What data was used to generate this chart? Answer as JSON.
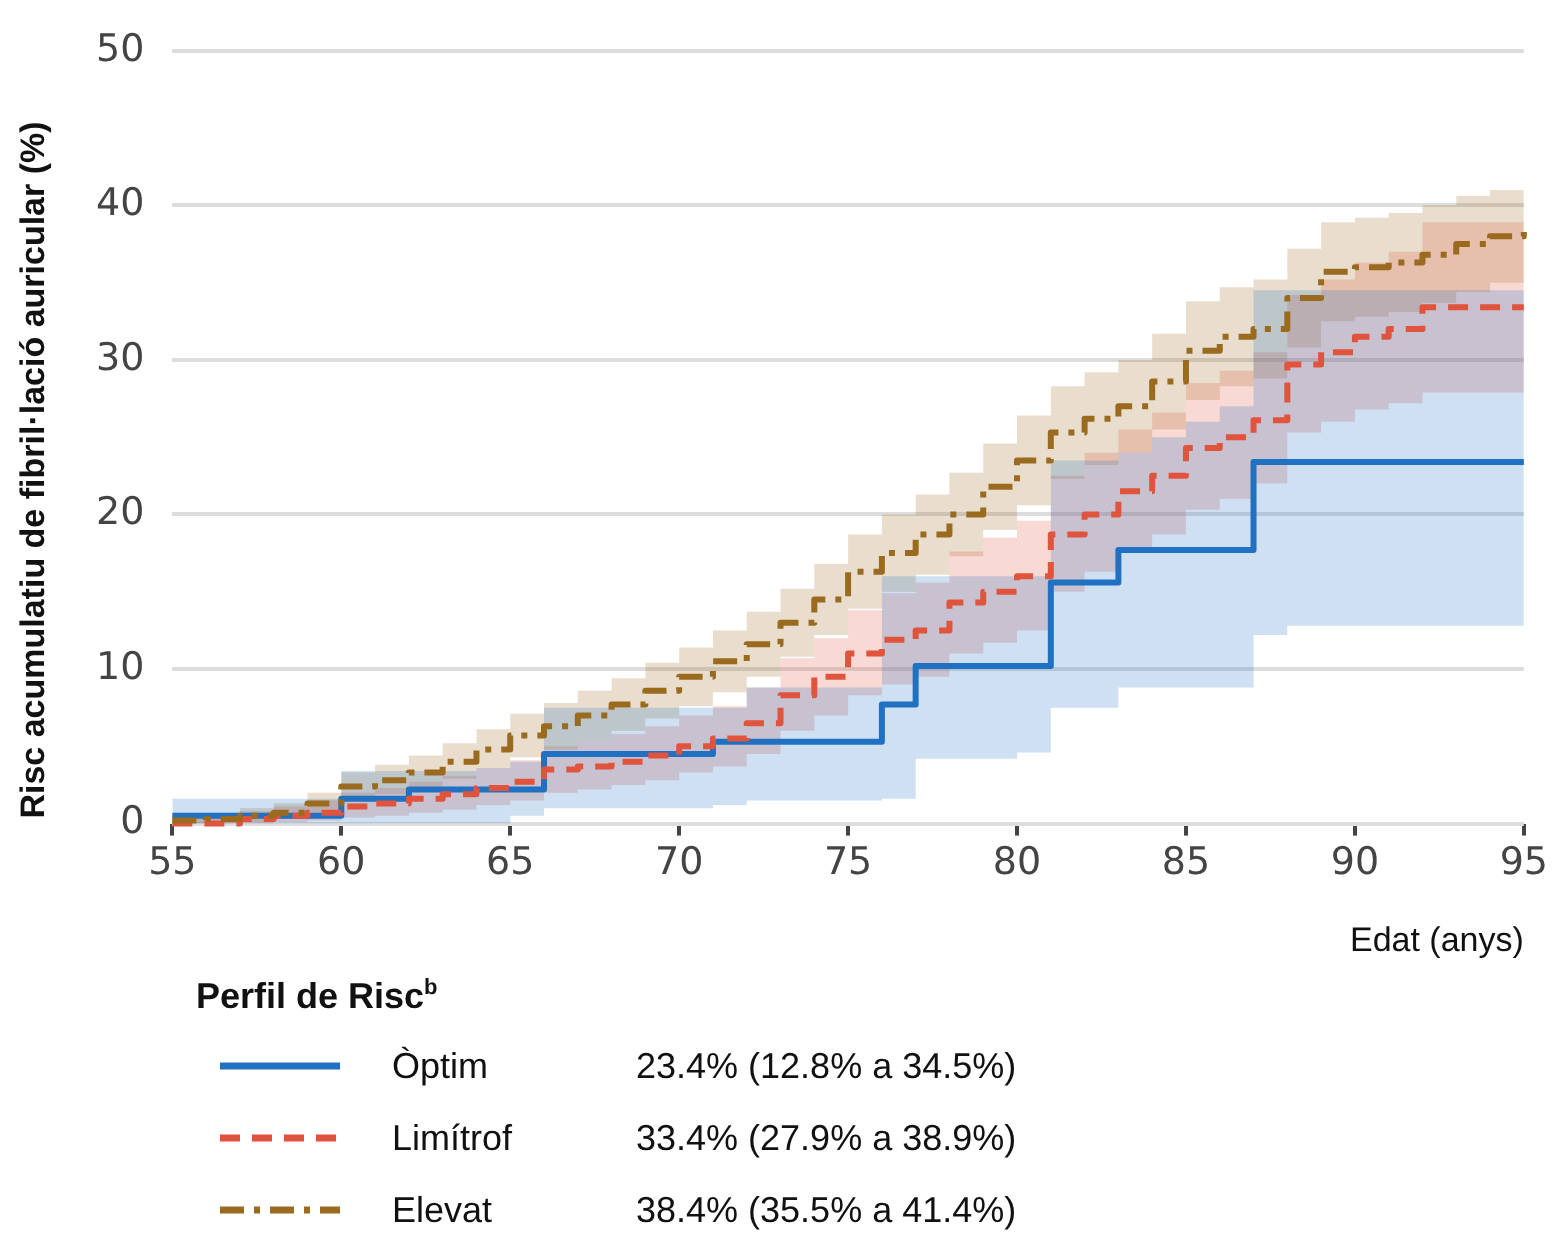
{
  "chart_data": {
    "type": "step",
    "ylabel": "Risc acumulatiu de fibril·lació auricular (%)",
    "xlabel": "Edat (anys)",
    "legend_title": "Perfil de Risc$^{b}$",
    "x": [
      55,
      56,
      57,
      58,
      59,
      60,
      61,
      62,
      63,
      64,
      65,
      66,
      67,
      68,
      69,
      70,
      71,
      72,
      73,
      74,
      75,
      76,
      77,
      78,
      79,
      80,
      81,
      82,
      83,
      84,
      85,
      86,
      87,
      88,
      89,
      90,
      91,
      92,
      93,
      94,
      95
    ],
    "xlim": [
      55,
      95
    ],
    "xticks": [
      55,
      60,
      65,
      70,
      75,
      80,
      85,
      90,
      95
    ],
    "ylim": [
      0,
      50
    ],
    "yticks": [
      0,
      10,
      20,
      30,
      40,
      50
    ],
    "grid": "y",
    "legend": "bottom left",
    "marker": "none",
    "series": [
      {
        "name": "Òptim",
        "color": "#2171c2",
        "line_style": "solid",
        "values": [
          0.5,
          0.5,
          0.5,
          0.5,
          0.5,
          1.6,
          1.6,
          2.2,
          2.2,
          2.2,
          2.2,
          4.5,
          4.5,
          4.5,
          4.5,
          4.5,
          5.3,
          5.3,
          5.3,
          5.3,
          5.3,
          7.7,
          10.2,
          10.2,
          10.2,
          10.2,
          15.6,
          15.6,
          17.7,
          17.7,
          17.7,
          17.7,
          23.4,
          23.4,
          23.4,
          23.4,
          23.4,
          23.4,
          23.4,
          23.4,
          23.4
        ],
        "lower": [
          0,
          0,
          0,
          0,
          0,
          0,
          0,
          0,
          0,
          0,
          0.5,
          1,
          1,
          1,
          1,
          1,
          1.2,
          1.5,
          1.5,
          1.5,
          1.5,
          1.6,
          4.2,
          4.2,
          4.2,
          4.6,
          7.5,
          7.5,
          8.8,
          8.8,
          8.8,
          8.8,
          12.2,
          12.8,
          12.8,
          12.8,
          12.8,
          12.8,
          12.8,
          12.8,
          12.8
        ],
        "upper": [
          1.6,
          1.6,
          1.6,
          1.6,
          1.6,
          3.4,
          3.4,
          3.4,
          3.4,
          3.6,
          4,
          7.5,
          7.5,
          7.5,
          7.5,
          7.5,
          7.5,
          8.8,
          8.8,
          8.8,
          8.8,
          16,
          16,
          16,
          16,
          16,
          23.5,
          23.5,
          24,
          25,
          26,
          27,
          34.5,
          34.5,
          34.5,
          34.5,
          34.5,
          34.5,
          34.5,
          34.5,
          34.5
        ]
      },
      {
        "name": "Limítrof",
        "color": "#e0533d",
        "line_style": "dashed",
        "values": [
          0,
          0,
          0.3,
          0.5,
          0.7,
          1.1,
          1.3,
          1.6,
          1.9,
          2.3,
          2.7,
          3.5,
          3.7,
          4,
          4.4,
          5,
          5.5,
          6.5,
          8.3,
          9.5,
          11,
          11.9,
          12.5,
          14.3,
          15,
          16,
          18.7,
          20,
          21.5,
          22.5,
          24.3,
          25,
          26.1,
          29.7,
          30.5,
          31.5,
          32,
          33.4,
          33.4,
          33.4,
          33.4
        ],
        "lower": [
          0,
          0,
          0,
          0.1,
          0.2,
          0.4,
          0.5,
          0.7,
          0.9,
          1.2,
          1.5,
          2,
          2.2,
          2.5,
          2.8,
          3.3,
          3.7,
          4.5,
          6,
          7,
          8.3,
          9,
          9.5,
          11,
          11.7,
          12.5,
          15,
          16.3,
          17.7,
          18.7,
          20.3,
          21,
          22,
          25.3,
          26,
          26.8,
          27.2,
          27.9,
          27.9,
          27.9,
          27.9
        ],
        "upper": [
          0.3,
          0.5,
          0.8,
          1.1,
          1.5,
          2,
          2.3,
          2.7,
          3.1,
          3.6,
          4.1,
          5,
          5.4,
          5.8,
          6.3,
          7,
          7.6,
          8.8,
          10.7,
          12,
          13.8,
          14.9,
          15.6,
          17.6,
          18.5,
          19.6,
          22.5,
          24,
          25.5,
          26.6,
          28.5,
          29.3,
          30.5,
          34.2,
          35.2,
          36.3,
          37,
          38.9,
          38.9,
          38.9,
          38.9
        ]
      },
      {
        "name": "Elevat",
        "color": "#9a6a1f",
        "line_style": "dashdot",
        "values": [
          0.2,
          0.3,
          0.5,
          0.7,
          1.3,
          2.4,
          2.8,
          3.3,
          4,
          4.8,
          5.7,
          6.3,
          7,
          7.7,
          8.6,
          9.5,
          10.5,
          11.6,
          13,
          14.5,
          16.3,
          17.5,
          18.7,
          20,
          21.8,
          23.5,
          25.3,
          26.2,
          27,
          28.6,
          30.6,
          31.5,
          32,
          34,
          35.7,
          36,
          36.3,
          36.8,
          37.5,
          38,
          38.4
        ],
        "lower": [
          0,
          0,
          0.1,
          0.3,
          0.7,
          1.6,
          1.9,
          2.3,
          2.9,
          3.6,
          4.3,
          4.8,
          5.4,
          6,
          6.8,
          7.6,
          8.5,
          9.5,
          10.8,
          12.2,
          13.9,
          15,
          16.1,
          17.3,
          19,
          20.6,
          22.3,
          23.2,
          24,
          25.5,
          27.4,
          28.3,
          28.8,
          30.8,
          32.5,
          32.8,
          33.1,
          33.7,
          34.4,
          35,
          35.5
        ],
        "upper": [
          0.5,
          0.7,
          1,
          1.3,
          2,
          3.3,
          3.8,
          4.4,
          5.2,
          6.1,
          7.1,
          7.8,
          8.6,
          9.4,
          10.4,
          11.4,
          12.5,
          13.7,
          15.2,
          16.8,
          18.7,
          20,
          21.3,
          22.7,
          24.6,
          26.4,
          28.3,
          29.2,
          30,
          31.7,
          33.8,
          34.7,
          35.2,
          37.2,
          38.9,
          39.2,
          39.5,
          40,
          40.6,
          41,
          41.4
        ]
      }
    ],
    "annotations": [
      "23.4% (12.8% a 34.5%)",
      "33.4% (27.9% a 38.9%)",
      "38.4% (35.5% a 41.4%)"
    ]
  }
}
